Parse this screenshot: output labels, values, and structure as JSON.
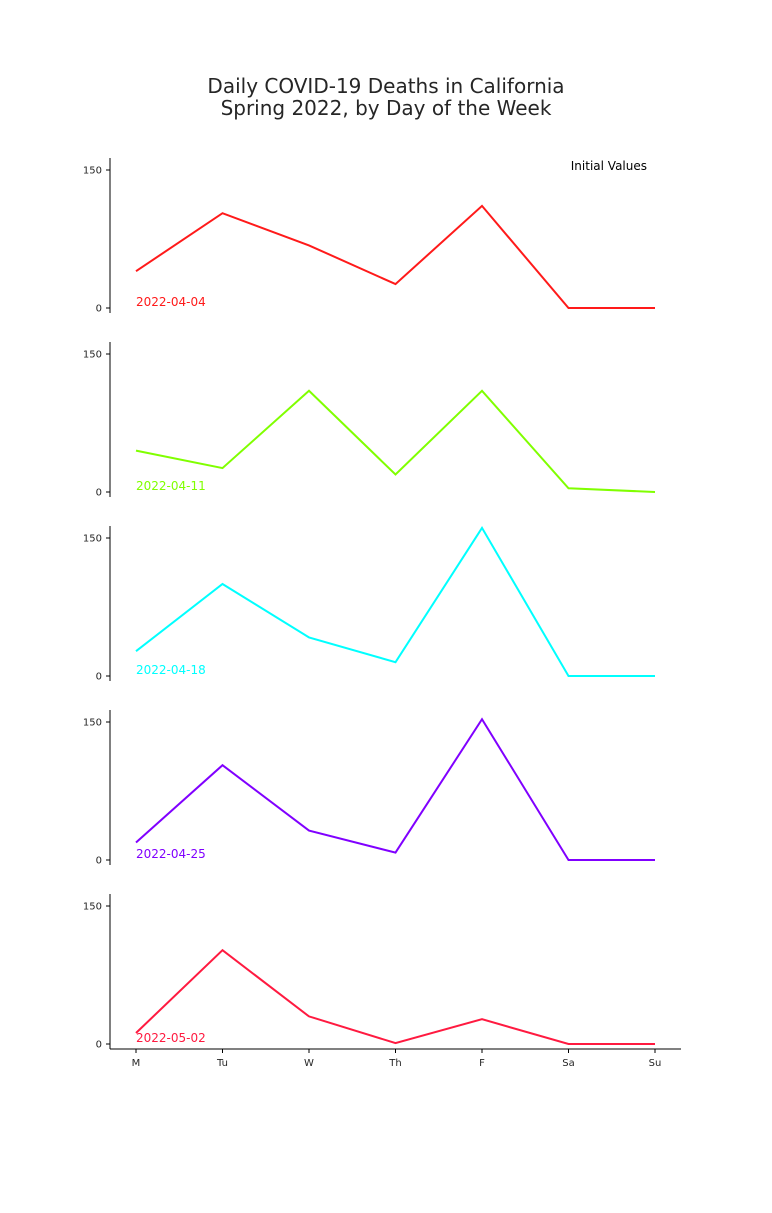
{
  "chart_data": {
    "type": "line",
    "title_line1": "Daily COVID-19 Deaths in California",
    "title_line2": "Spring 2022, by Day of the Week",
    "annotation": "Initial Values",
    "categories": [
      "M",
      "Tu",
      "W",
      "Th",
      "F",
      "Sa",
      "Su"
    ],
    "ylim": [
      0,
      150
    ],
    "yticks": [
      0,
      150
    ],
    "series": [
      {
        "name": "2022-04-04",
        "color": "#ff1a1a",
        "values": [
          40,
          103,
          68,
          26,
          111,
          0,
          0
        ]
      },
      {
        "name": "2022-04-11",
        "color": "#80ff00",
        "values": [
          45,
          26,
          110,
          19,
          110,
          4,
          0
        ]
      },
      {
        "name": "2022-04-18",
        "color": "#00ffff",
        "values": [
          27,
          100,
          42,
          15,
          161,
          0,
          0
        ]
      },
      {
        "name": "2022-04-25",
        "color": "#8000ff",
        "values": [
          19,
          103,
          32,
          8,
          153,
          0,
          0
        ]
      },
      {
        "name": "2022-05-02",
        "color": "#ff1a40",
        "values": [
          12,
          102,
          30,
          1,
          27,
          0,
          0
        ]
      }
    ]
  }
}
